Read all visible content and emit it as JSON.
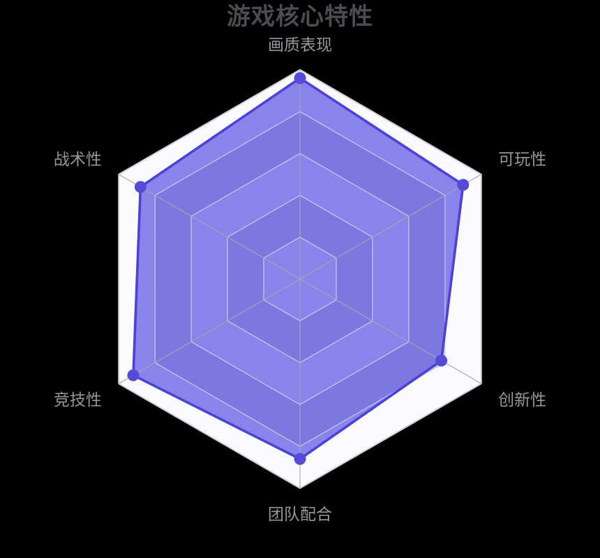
{
  "chart_data": {
    "type": "radar",
    "title": "游戏核心特性",
    "shape": "polygon",
    "levels": 5,
    "value_range": [
      0,
      100
    ],
    "legend_shown": false,
    "grid_on": true,
    "indicators": [
      {
        "name": "画质表现",
        "max": 100
      },
      {
        "name": "可玩性",
        "max": 100
      },
      {
        "name": "创新性",
        "max": 100
      },
      {
        "name": "团队配合",
        "max": 100
      },
      {
        "name": "竞技性",
        "max": 100
      },
      {
        "name": "战术性",
        "max": 100
      }
    ],
    "series": [
      {
        "values": [
          96,
          90,
          78,
          86,
          92,
          88
        ]
      }
    ],
    "colors": {
      "background": "#000000",
      "title": "#4b4b52",
      "label": "#97979d",
      "series_line": "#4c41d8",
      "series_point": "#554bd8",
      "series_fill": "rgba(100,91,227,0.75)",
      "split_area_odd": "#fbfbfd",
      "split_area_even": "#c9c9d4",
      "split_line": "rgba(208,208,238,0.85)",
      "axis_line": "#a6a6ae",
      "outer_border": "#d0d0d9"
    }
  }
}
